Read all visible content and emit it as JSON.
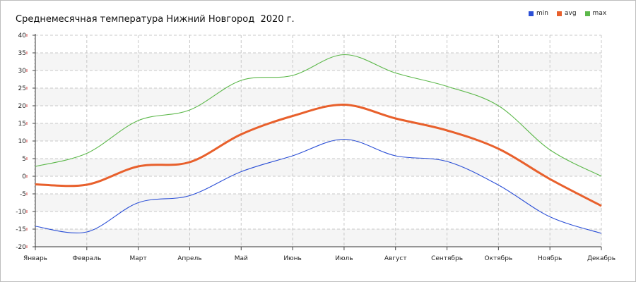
{
  "chart_data": {
    "type": "line",
    "title": "Среднемесячная температура Нижний Новгород  2020 г.",
    "categories": [
      "Январь",
      "Февраль",
      "Март",
      "Апрель",
      "Май",
      "Июнь",
      "Июль",
      "Август",
      "Сентябрь",
      "Октябрь",
      "Ноябрь",
      "Декабрь"
    ],
    "ylim": [
      -20,
      40
    ],
    "yticks": [
      -20,
      -15,
      -10,
      -5,
      0,
      5,
      10,
      15,
      20,
      25,
      30,
      35,
      40
    ],
    "grid": true,
    "legend_position": "top-right",
    "series": [
      {
        "name": "min",
        "color": "#2b4fd6",
        "values": [
          -14.2,
          -15.8,
          -7.5,
          -5.5,
          1.3,
          5.8,
          10.5,
          5.8,
          4.2,
          -2.5,
          -11.5,
          -16.2
        ]
      },
      {
        "name": "avg",
        "color": "#e8602c",
        "values": [
          -2.3,
          -2.4,
          2.8,
          4.0,
          11.9,
          17.1,
          20.3,
          16.4,
          13.0,
          7.8,
          -0.8,
          -8.4
        ]
      },
      {
        "name": "max",
        "color": "#5cb84a",
        "values": [
          2.8,
          6.5,
          15.8,
          18.8,
          27.2,
          28.6,
          34.5,
          29.3,
          25.5,
          20.0,
          7.5,
          0.0
        ]
      }
    ]
  }
}
